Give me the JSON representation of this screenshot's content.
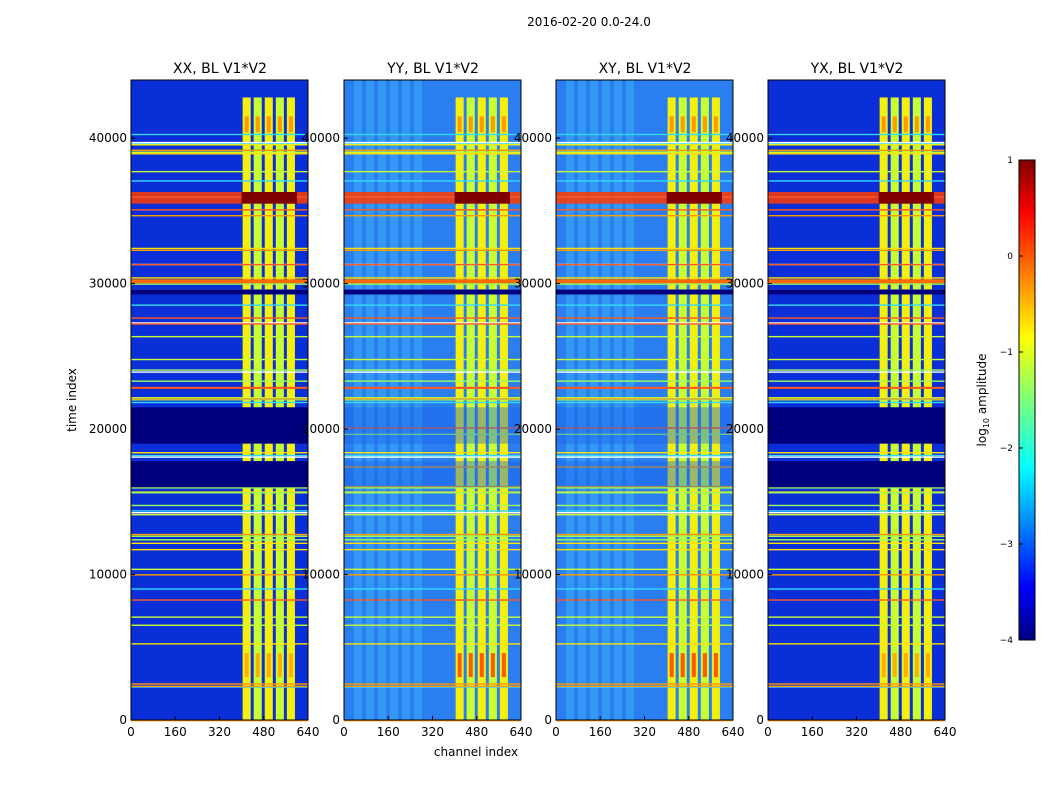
{
  "figure_title": "2016-02-20 0.0-24.0",
  "chart_data": {
    "type": "heatmap",
    "suptitle": "2016-02-20 0.0-24.0",
    "xlabel": "channel index",
    "ylabel": "time index",
    "xlim": [
      0,
      640
    ],
    "ylim": [
      0,
      44000
    ],
    "xticks": [
      0,
      160,
      320,
      480,
      640
    ],
    "yticks": [
      0,
      10000,
      20000,
      30000,
      40000
    ],
    "panels": [
      {
        "title": "XX, BL V1*V2",
        "pol": "XX"
      },
      {
        "title": "YY, BL V1*V2",
        "pol": "YY"
      },
      {
        "title": "XY, BL V1*V2",
        "pol": "XY"
      },
      {
        "title": "YX, BL V1*V2",
        "pol": "YX"
      }
    ],
    "colorbar": {
      "label_prefix": "log",
      "label_sub": "10",
      "label_suffix": " amplitude",
      "range": [
        -4,
        1
      ],
      "ticks": [
        "1",
        "0",
        "−1",
        "−2",
        "−3",
        "−4"
      ],
      "colormap": "jet"
    },
    "rfi_channel_band": [
      400,
      600
    ],
    "flagged_time_ranges": [
      [
        16000,
        17800
      ],
      [
        19000,
        21500
      ]
    ],
    "bright_time_range": [
      35500,
      36300
    ]
  }
}
